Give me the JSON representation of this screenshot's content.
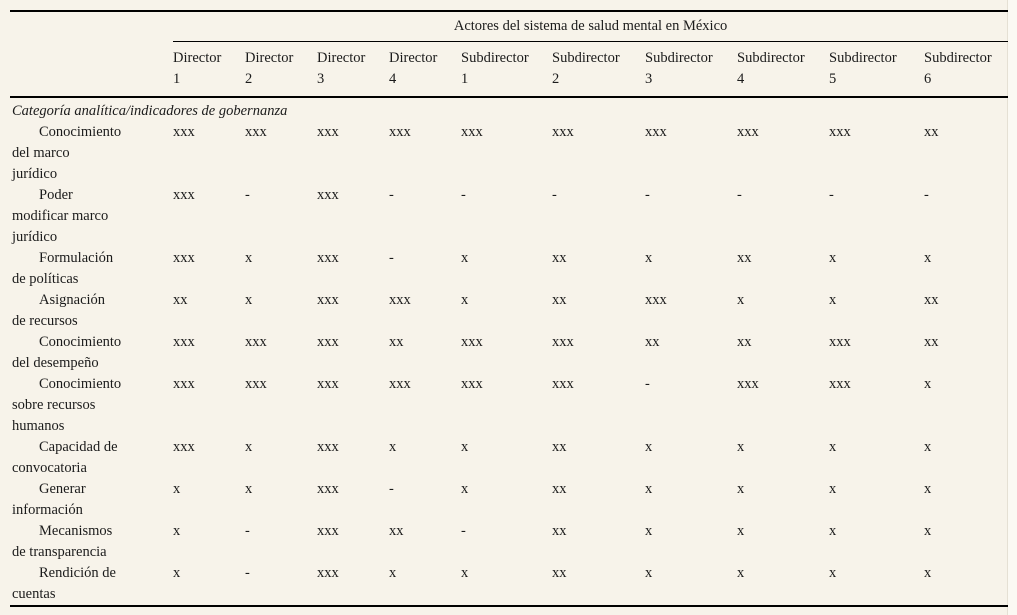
{
  "table": {
    "spanning_header": "Actores del sistema de salud mental en México",
    "category_header": "Categoría analítica/indicadores de gobernanza",
    "columns": [
      {
        "title": "Director",
        "number": "1"
      },
      {
        "title": "Director",
        "number": "2"
      },
      {
        "title": "Director",
        "number": "3"
      },
      {
        "title": "Director",
        "number": "4"
      },
      {
        "title": "Subdirector",
        "number": "1"
      },
      {
        "title": "Subdirector",
        "number": "2"
      },
      {
        "title": "Subdirector",
        "number": "3"
      },
      {
        "title": "Subdirector",
        "number": "4"
      },
      {
        "title": "Subdirector",
        "number": "5"
      },
      {
        "title": "Subdirector",
        "number": "6"
      }
    ],
    "rows": [
      {
        "label": "Conocimiento del marco jurídico",
        "label_lines": [
          "Conocimiento",
          "del marco",
          "jurídico"
        ],
        "values": [
          "xxx",
          "xxx",
          "xxx",
          "xxx",
          "xxx",
          "xxx",
          "xxx",
          "xxx",
          "xxx",
          "xx"
        ]
      },
      {
        "label": "Poder modificar marco jurídico",
        "label_lines": [
          "Poder",
          "modificar marco",
          "jurídico"
        ],
        "values": [
          "xxx",
          "-",
          "xxx",
          "-",
          "-",
          "-",
          "-",
          "-",
          "-",
          "-"
        ]
      },
      {
        "label": "Formulación de políticas",
        "label_lines": [
          "Formulación",
          "de políticas"
        ],
        "values": [
          "xxx",
          "x",
          "xxx",
          "-",
          "x",
          "xx",
          "x",
          "xx",
          "x",
          "x"
        ]
      },
      {
        "label": "Asignación de recursos",
        "label_lines": [
          "Asignación",
          "de recursos"
        ],
        "values": [
          "xx",
          "x",
          "xxx",
          "xxx",
          "x",
          "xx",
          "xxx",
          "x",
          "x",
          "xx"
        ]
      },
      {
        "label": "Conocimiento del desempeño",
        "label_lines": [
          "Conocimiento",
          "del desempeño"
        ],
        "values": [
          "xxx",
          "xxx",
          "xxx",
          "xx",
          "xxx",
          "xxx",
          "xx",
          "xx",
          "xxx",
          "xx"
        ]
      },
      {
        "label": "Conocimiento sobre recursos humanos",
        "label_lines": [
          "Conocimiento",
          "sobre recursos",
          "humanos"
        ],
        "values": [
          "xxx",
          "xxx",
          "xxx",
          "xxx",
          "xxx",
          "xxx",
          "-",
          "xxx",
          "xxx",
          "x"
        ]
      },
      {
        "label": "Capacidad de convocatoria",
        "label_lines": [
          "Capacidad de",
          "convocatoria"
        ],
        "values": [
          "xxx",
          "x",
          "xxx",
          "x",
          "x",
          "xx",
          "x",
          "x",
          "x",
          "x"
        ]
      },
      {
        "label": "Generar información",
        "label_lines": [
          "Generar",
          "información"
        ],
        "values": [
          "x",
          "x",
          "xxx",
          "-",
          "x",
          "xx",
          "x",
          "x",
          "x",
          "x"
        ]
      },
      {
        "label": "Mecanismos de transparencia",
        "label_lines": [
          "Mecanismos",
          "de transparencia"
        ],
        "values": [
          "x",
          "-",
          "xxx",
          "xx",
          "-",
          "xx",
          "x",
          "x",
          "x",
          "x"
        ]
      },
      {
        "label": "Rendición de cuentas",
        "label_lines": [
          "Rendición de",
          "cuentas"
        ],
        "values": [
          "x",
          "-",
          "xxx",
          "x",
          "x",
          "xx",
          "x",
          "x",
          "x",
          "x"
        ]
      }
    ]
  },
  "colors": {
    "page_background": "#f7f3ea",
    "text": "#1b1b1b",
    "rule": "#000000"
  }
}
